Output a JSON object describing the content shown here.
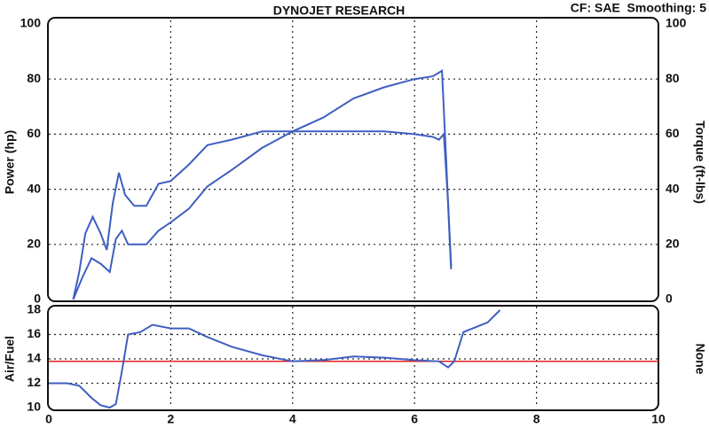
{
  "chart_data": [
    {
      "type": "line",
      "title": "DYNOJET RESEARCH",
      "subtitle": "CF: SAE  Smoothing: 5",
      "ylabel": "Power (hp)",
      "y2label": "Torque (ft-lbs)",
      "xlim": [
        0,
        10
      ],
      "xticks": [
        0,
        2,
        4,
        6,
        8,
        10
      ],
      "xtick_labels": false,
      "ylim": [
        0,
        100
      ],
      "yticks": [
        0,
        20,
        40,
        60,
        80,
        100
      ],
      "y2lim": [
        0,
        100
      ],
      "y2ticks": [
        0,
        20,
        40,
        60,
        80,
        100
      ],
      "grid": true,
      "series": [
        {
          "name": "Power (hp)",
          "color": "#3f5fc0",
          "x": [
            0.4,
            0.55,
            0.7,
            0.85,
            1.0,
            1.1,
            1.2,
            1.3,
            1.45,
            1.6,
            1.8,
            2.0,
            2.3,
            2.6,
            3.0,
            3.5,
            4.0,
            4.5,
            5.0,
            5.5,
            6.0,
            6.3,
            6.45,
            6.52,
            6.58,
            6.6
          ],
          "values": [
            0,
            8,
            15,
            13,
            10,
            22,
            25,
            20,
            20,
            20,
            25,
            28,
            33,
            41,
            47,
            55,
            61,
            66,
            73,
            77,
            80,
            81,
            83,
            50,
            20,
            11
          ]
        },
        {
          "name": "Torque (ft-lbs)",
          "color": "#3f5fc0",
          "axis": "y2",
          "x": [
            0.4,
            0.5,
            0.6,
            0.72,
            0.85,
            0.95,
            1.05,
            1.15,
            1.25,
            1.4,
            1.6,
            1.8,
            2.0,
            2.3,
            2.6,
            3.0,
            3.5,
            4.0,
            4.5,
            5.0,
            5.5,
            6.0,
            6.3,
            6.4,
            6.48,
            6.55,
            6.6
          ],
          "values": [
            0,
            10,
            24,
            30,
            24,
            18,
            35,
            46,
            38,
            34,
            34,
            42,
            43,
            49,
            56,
            58,
            61,
            61,
            61,
            61,
            61,
            60,
            59,
            58,
            60,
            35,
            12
          ]
        }
      ]
    },
    {
      "type": "line",
      "ylabel": "Air/Fuel",
      "y2label": "None",
      "xlim": [
        0,
        10
      ],
      "xticks": [
        0,
        2,
        4,
        6,
        8,
        10
      ],
      "xtick_labels": true,
      "ylim": [
        10,
        18
      ],
      "yticks": [
        10,
        12,
        14,
        16,
        18
      ],
      "grid": true,
      "reference_line": 13.8,
      "reference_color": "#e02020",
      "series": [
        {
          "name": "Air/Fuel",
          "color": "#3f5fc0",
          "x": [
            0,
            0.3,
            0.5,
            0.7,
            0.85,
            1.0,
            1.1,
            1.2,
            1.3,
            1.5,
            1.7,
            2.0,
            2.3,
            2.6,
            3.0,
            3.5,
            4.0,
            4.5,
            5.0,
            5.5,
            6.0,
            6.4,
            6.55,
            6.65,
            6.8,
            7.0,
            7.2,
            7.4
          ],
          "values": [
            12,
            12,
            11.8,
            10.8,
            10.2,
            10,
            10.3,
            13,
            16,
            16.2,
            16.8,
            16.5,
            16.5,
            15.8,
            15,
            14.3,
            13.8,
            13.9,
            14.2,
            14.1,
            13.9,
            13.8,
            13.3,
            13.8,
            16.2,
            16.6,
            17,
            18
          ]
        }
      ]
    }
  ]
}
